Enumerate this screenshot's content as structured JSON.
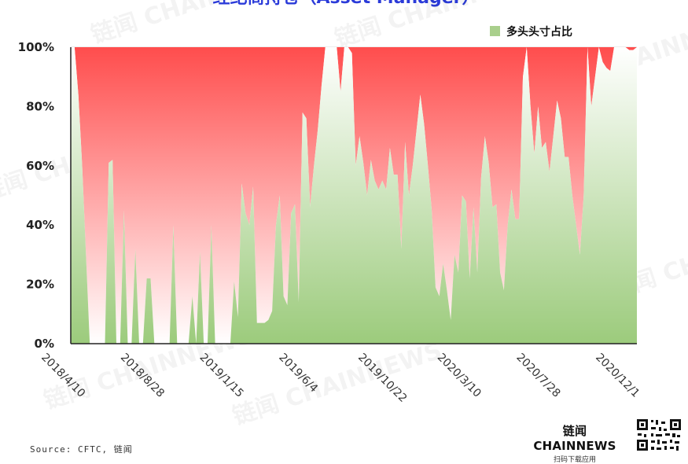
{
  "title": "经纪商持仓（Asset Manager）",
  "legend": {
    "label": "多头头寸占比",
    "color": "#a9cf8c"
  },
  "watermark_text": "链闻 CHAINNEWS",
  "brand": {
    "name": "链闻 CHAINNEWS",
    "subtitle": "扫码下载应用"
  },
  "source": "Source: CFTC, 链闻",
  "colors": {
    "long_top": "#ffffff",
    "long_bottom": "#9ccb7c",
    "short_top": "#ff4d4d",
    "short_bottom": "#ffffff"
  },
  "chart_data": {
    "type": "area",
    "title": "经纪商持仓（Asset Manager）",
    "xlabel": "",
    "ylabel": "",
    "series": [
      {
        "name": "多头头寸占比",
        "values": [
          [
            0,
            100
          ],
          [
            1,
            100
          ],
          [
            2,
            84
          ],
          [
            3,
            60
          ],
          [
            4,
            30
          ],
          [
            5,
            0
          ],
          [
            6,
            0
          ],
          [
            7,
            0
          ],
          [
            8,
            0
          ],
          [
            9,
            0
          ],
          [
            10,
            61
          ],
          [
            11,
            62
          ],
          [
            12,
            0
          ],
          [
            13,
            0
          ],
          [
            14,
            45
          ],
          [
            15,
            0
          ],
          [
            16,
            0
          ],
          [
            17,
            32
          ],
          [
            18,
            0
          ],
          [
            19,
            0
          ],
          [
            20,
            22
          ],
          [
            21,
            22
          ],
          [
            22,
            0
          ],
          [
            23,
            0
          ],
          [
            24,
            0
          ],
          [
            25,
            0
          ],
          [
            26,
            0
          ],
          [
            27,
            40
          ],
          [
            28,
            0
          ],
          [
            29,
            0
          ],
          [
            30,
            0
          ],
          [
            31,
            0
          ],
          [
            32,
            16
          ],
          [
            33,
            0
          ],
          [
            34,
            31
          ],
          [
            35,
            0
          ],
          [
            36,
            0
          ],
          [
            37,
            40
          ],
          [
            38,
            0
          ],
          [
            39,
            0
          ],
          [
            40,
            0
          ],
          [
            41,
            0
          ],
          [
            42,
            0
          ],
          [
            43,
            21
          ],
          [
            44,
            9
          ],
          [
            45,
            54
          ],
          [
            46,
            44
          ],
          [
            47,
            40
          ],
          [
            48,
            53
          ],
          [
            49,
            7
          ],
          [
            50,
            7
          ],
          [
            51,
            7
          ],
          [
            52,
            8
          ],
          [
            53,
            11
          ],
          [
            54,
            40
          ],
          [
            55,
            50
          ],
          [
            56,
            16
          ],
          [
            57,
            13
          ],
          [
            58,
            44
          ],
          [
            59,
            47
          ],
          [
            60,
            14
          ],
          [
            61,
            78
          ],
          [
            62,
            76
          ],
          [
            63,
            46
          ],
          [
            64,
            60
          ],
          [
            65,
            72
          ],
          [
            66,
            87
          ],
          [
            67,
            100
          ],
          [
            68,
            100
          ],
          [
            69,
            100
          ],
          [
            70,
            100
          ],
          [
            71,
            85
          ],
          [
            72,
            100
          ],
          [
            73,
            100
          ],
          [
            74,
            98
          ],
          [
            75,
            60
          ],
          [
            76,
            70
          ],
          [
            77,
            61
          ],
          [
            78,
            50
          ],
          [
            79,
            62
          ],
          [
            80,
            55
          ],
          [
            81,
            52
          ],
          [
            82,
            55
          ],
          [
            83,
            52
          ],
          [
            84,
            66
          ],
          [
            85,
            57
          ],
          [
            86,
            57
          ],
          [
            87,
            32
          ],
          [
            88,
            68
          ],
          [
            89,
            50
          ],
          [
            90,
            60
          ],
          [
            91,
            72
          ],
          [
            92,
            84
          ],
          [
            93,
            74
          ],
          [
            94,
            60
          ],
          [
            95,
            45
          ],
          [
            96,
            19
          ],
          [
            97,
            16
          ],
          [
            98,
            27
          ],
          [
            99,
            18
          ],
          [
            100,
            8
          ],
          [
            101,
            30
          ],
          [
            102,
            24
          ],
          [
            103,
            50
          ],
          [
            104,
            48
          ],
          [
            105,
            22
          ],
          [
            106,
            46
          ],
          [
            107,
            24
          ],
          [
            108,
            56
          ],
          [
            109,
            70
          ],
          [
            110,
            61
          ],
          [
            111,
            46
          ],
          [
            112,
            47
          ],
          [
            113,
            24
          ],
          [
            114,
            18
          ],
          [
            115,
            40
          ],
          [
            116,
            52
          ],
          [
            117,
            42
          ],
          [
            118,
            42
          ],
          [
            119,
            90
          ],
          [
            120,
            100
          ],
          [
            121,
            80
          ],
          [
            122,
            64
          ],
          [
            123,
            80
          ],
          [
            124,
            66
          ],
          [
            125,
            68
          ],
          [
            126,
            58
          ],
          [
            127,
            70
          ],
          [
            128,
            82
          ],
          [
            129,
            76
          ],
          [
            130,
            63
          ],
          [
            131,
            63
          ],
          [
            132,
            50
          ],
          [
            133,
            40
          ],
          [
            134,
            30
          ],
          [
            135,
            50
          ],
          [
            136,
            100
          ],
          [
            137,
            80
          ],
          [
            138,
            90
          ],
          [
            139,
            100
          ],
          [
            140,
            95
          ],
          [
            141,
            93
          ],
          [
            142,
            92
          ],
          [
            143,
            100
          ],
          [
            144,
            100
          ],
          [
            145,
            100
          ],
          [
            146,
            100
          ],
          [
            147,
            99
          ],
          [
            148,
            99
          ],
          [
            149,
            100
          ]
        ]
      }
    ],
    "x_tick_labels": [
      "2018/4/10",
      "2018/8/28",
      "2019/1/15",
      "2019/6/4",
      "2019/10/22",
      "2020/3/10",
      "2020/7/28",
      "2020/12/1"
    ],
    "y_tick_labels": [
      "0%",
      "20%",
      "40%",
      "60%",
      "80%",
      "100%"
    ],
    "ylim": [
      0,
      100
    ],
    "grid": true,
    "legend_position": "top-right"
  }
}
